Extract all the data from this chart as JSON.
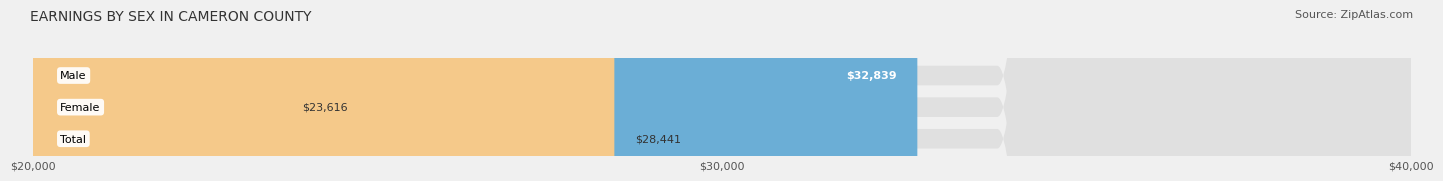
{
  "title": "EARNINGS BY SEX IN CAMERON COUNTY",
  "source": "Source: ZipAtlas.com",
  "categories": [
    "Male",
    "Female",
    "Total"
  ],
  "values": [
    32839,
    23616,
    28441
  ],
  "bar_colors": [
    "#6baed6",
    "#f4a0b0",
    "#f5c98a"
  ],
  "label_inside": [
    true,
    false,
    false
  ],
  "x_min": 20000,
  "x_max": 40000,
  "x_ticks": [
    20000,
    30000,
    40000
  ],
  "x_tick_labels": [
    "$20,000",
    "$30,000",
    "$40,000"
  ],
  "background_color": "#f0f0f0",
  "bar_background_color": "#e0e0e0",
  "title_fontsize": 10,
  "source_fontsize": 8,
  "tick_fontsize": 8,
  "bar_label_fontsize": 8,
  "category_fontsize": 8
}
